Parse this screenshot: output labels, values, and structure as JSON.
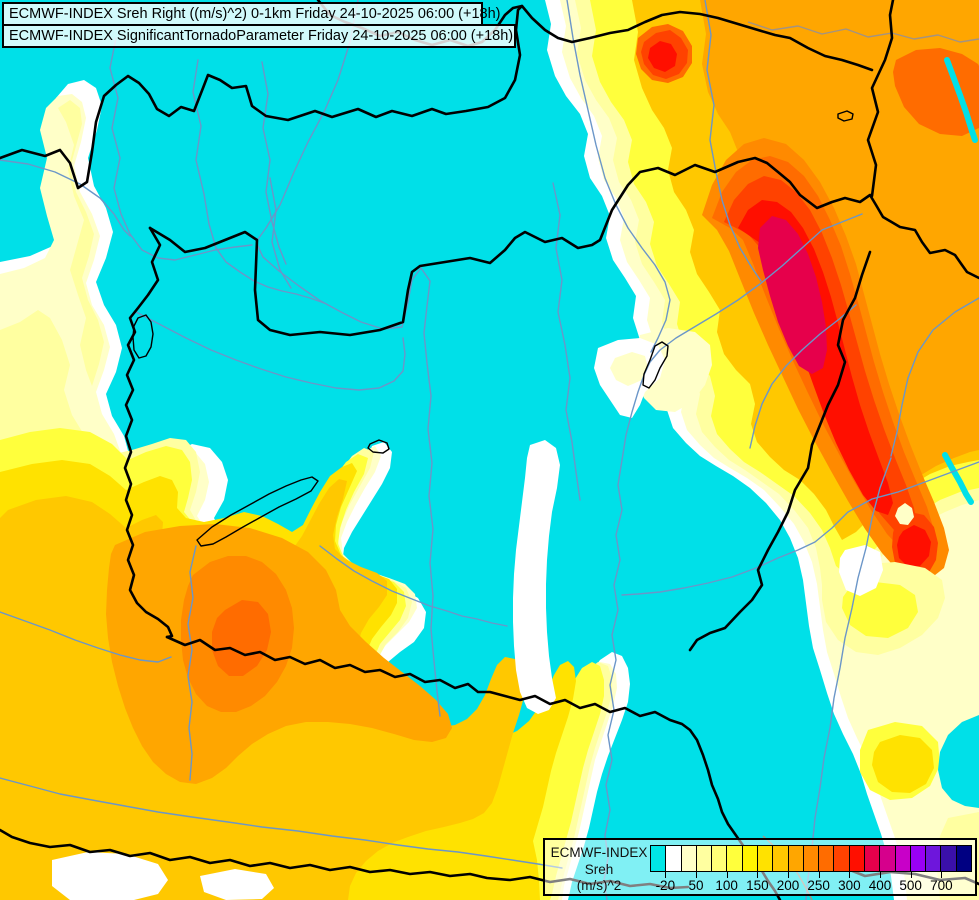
{
  "title": {
    "line1": "ECMWF-INDEX Sreh Right ((m/s)^2) 0-1km Friday 24-10-2025 06:00 (+18h)",
    "line2": "ECMWF-INDEX SignificantTornadoParameter Friday 24-10-2025 06:00 (+18h)"
  },
  "legend": {
    "label_line1": "ECMWF-INDEX",
    "label_line2": "Sreh",
    "label_line3": "(m/s)^2",
    "tick_labels": [
      "-20",
      "50",
      "100",
      "150",
      "200",
      "250",
      "300",
      "400",
      "500",
      "700"
    ],
    "colors": [
      "#00E6E6",
      "#FFFFFF",
      "#FFFFC8",
      "#FFFFA0",
      "#FFFF78",
      "#FFFF3C",
      "#FFF500",
      "#FFE200",
      "#FFC800",
      "#FFA600",
      "#FF8A00",
      "#FF6C00",
      "#FF4200",
      "#FF0F00",
      "#E6004B",
      "#D6008C",
      "#C800C8",
      "#9900F5",
      "#6E16DC",
      "#3A10AA",
      "#000082"
    ]
  },
  "map": {
    "background": "#00E0E8",
    "river_color": "#6B96C8",
    "border_color": "#000000",
    "outside_border_color": "#A39382"
  }
}
